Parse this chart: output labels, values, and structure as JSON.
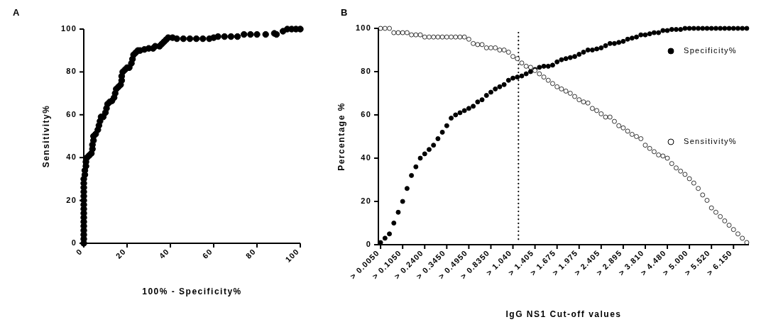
{
  "chart_data": [
    {
      "type": "scatter",
      "title": "A",
      "xlabel": "100% - Specificity%",
      "ylabel": "Sensitivity%",
      "xlim": [
        0,
        100
      ],
      "ylim": [
        0,
        100
      ],
      "xticks": [
        0,
        20,
        40,
        60,
        80,
        100
      ],
      "yticks": [
        0,
        20,
        40,
        60,
        80,
        100
      ],
      "marker": "circle",
      "grid": false,
      "legend": false,
      "series": [
        {
          "color": "#000000",
          "x": [
            0,
            0,
            0,
            0,
            0,
            0,
            0,
            0,
            0,
            0,
            0,
            0,
            0,
            0,
            0,
            0,
            0.5,
            0.5,
            1,
            1,
            1.5,
            2.5,
            3.5,
            4,
            4,
            4.5,
            4.5,
            5.5,
            6.5,
            7,
            7.5,
            8,
            9,
            10,
            10.5,
            11,
            12,
            13,
            14,
            14.5,
            15,
            16,
            17,
            17.5,
            17.5,
            18,
            19,
            20,
            21,
            22,
            22.5,
            23,
            24,
            25,
            26,
            28,
            30,
            32,
            33,
            35,
            36,
            37,
            38,
            39,
            41,
            43,
            46,
            49,
            52,
            55,
            58,
            60,
            62,
            65,
            68,
            71,
            74,
            77,
            80,
            84,
            88,
            89,
            92,
            94,
            96,
            98,
            100
          ],
          "values": [
            0,
            2,
            4,
            6,
            8,
            10,
            12,
            14,
            16,
            18,
            20,
            22,
            24,
            26,
            28,
            30,
            32,
            34,
            36,
            38,
            40,
            41,
            42,
            44,
            46,
            48,
            50,
            51,
            53,
            55,
            57,
            59,
            59,
            61,
            63,
            65,
            66,
            66.5,
            68,
            70,
            72,
            73,
            74,
            76,
            78,
            80,
            81,
            82,
            82,
            84,
            86,
            88,
            89,
            90,
            90,
            90.5,
            91,
            91,
            92,
            92,
            93,
            94,
            95,
            96,
            96,
            95.5,
            95.5,
            95.5,
            95.5,
            95.5,
            95.5,
            96,
            96.5,
            96.5,
            96.5,
            96.5,
            97.5,
            97.5,
            97.5,
            97.5,
            98,
            97.5,
            99,
            100,
            100,
            100,
            100
          ]
        }
      ]
    },
    {
      "type": "scatter",
      "title": "B",
      "xlabel": "IgG NS1 Cut-off values",
      "ylabel": "Percentage %",
      "ylim": [
        0,
        100
      ],
      "yticks": [
        0,
        20,
        40,
        60,
        80,
        100
      ],
      "marker": "circle",
      "grid": false,
      "legend": "right",
      "categories": [
        "> 0.0050",
        null,
        null,
        null,
        null,
        "> 0.1050",
        null,
        null,
        null,
        null,
        "> 0.2400",
        null,
        null,
        null,
        null,
        "> 0.3450",
        null,
        null,
        null,
        null,
        "> 0.4950",
        null,
        null,
        null,
        null,
        "> 0.8350",
        null,
        null,
        null,
        null,
        "> 1.040",
        null,
        null,
        null,
        null,
        "> 1.405",
        null,
        null,
        null,
        null,
        "> 1.675",
        null,
        null,
        null,
        null,
        "> 1.975",
        null,
        null,
        null,
        null,
        "> 2.405",
        null,
        null,
        null,
        null,
        "> 2.895",
        null,
        null,
        null,
        null,
        "> 3.810",
        null,
        null,
        null,
        null,
        "> 4.480",
        null,
        null,
        null,
        null,
        "> 5.000",
        null,
        null,
        null,
        null,
        "> 5.520",
        null,
        null,
        null,
        null,
        "> 6.150",
        null,
        null,
        null
      ],
      "series": [
        {
          "name": "Specificity%",
          "color": "#000000",
          "values": [
            1,
            3,
            5,
            10,
            15,
            20,
            26,
            32,
            36,
            40,
            42,
            44,
            46,
            49,
            52,
            55,
            58.5,
            60,
            61,
            62,
            63,
            64,
            66,
            67,
            69,
            70.5,
            72,
            73,
            74,
            76,
            77,
            77.5,
            78,
            79,
            80,
            81,
            82,
            82.5,
            82.5,
            83,
            84.5,
            85.5,
            86,
            86.5,
            87,
            88,
            89,
            90,
            90,
            90.5,
            91,
            92,
            93,
            93,
            93.5,
            94,
            95,
            95.5,
            96,
            97,
            97,
            97.5,
            98,
            98,
            99,
            99,
            99.5,
            99.5,
            99.5,
            100,
            100,
            100,
            100,
            100,
            100,
            100,
            100,
            100,
            100,
            100,
            100,
            100,
            100,
            100
          ]
        },
        {
          "name": "Sensitivity%",
          "color": "#000000",
          "values": [
            100,
            100,
            100,
            98,
            98,
            98,
            98,
            97,
            97,
            97,
            96,
            96,
            96,
            96,
            96,
            96,
            96,
            96,
            96,
            96,
            95,
            93,
            92.5,
            92.5,
            91,
            91,
            91,
            90,
            90,
            89,
            87,
            86,
            84,
            82.5,
            82,
            80.5,
            79,
            77.5,
            76,
            74.5,
            73,
            72,
            71,
            70,
            68.5,
            67,
            66,
            65.5,
            63,
            62,
            60.5,
            59,
            59,
            57,
            55,
            54,
            52.5,
            51,
            50,
            49,
            46,
            44.5,
            43,
            41.5,
            41,
            40,
            37.5,
            35.5,
            34,
            32.5,
            30.5,
            28.5,
            26,
            23,
            20.5,
            17,
            15,
            13,
            11,
            9,
            7,
            5,
            3,
            1
          ]
        }
      ]
    }
  ]
}
